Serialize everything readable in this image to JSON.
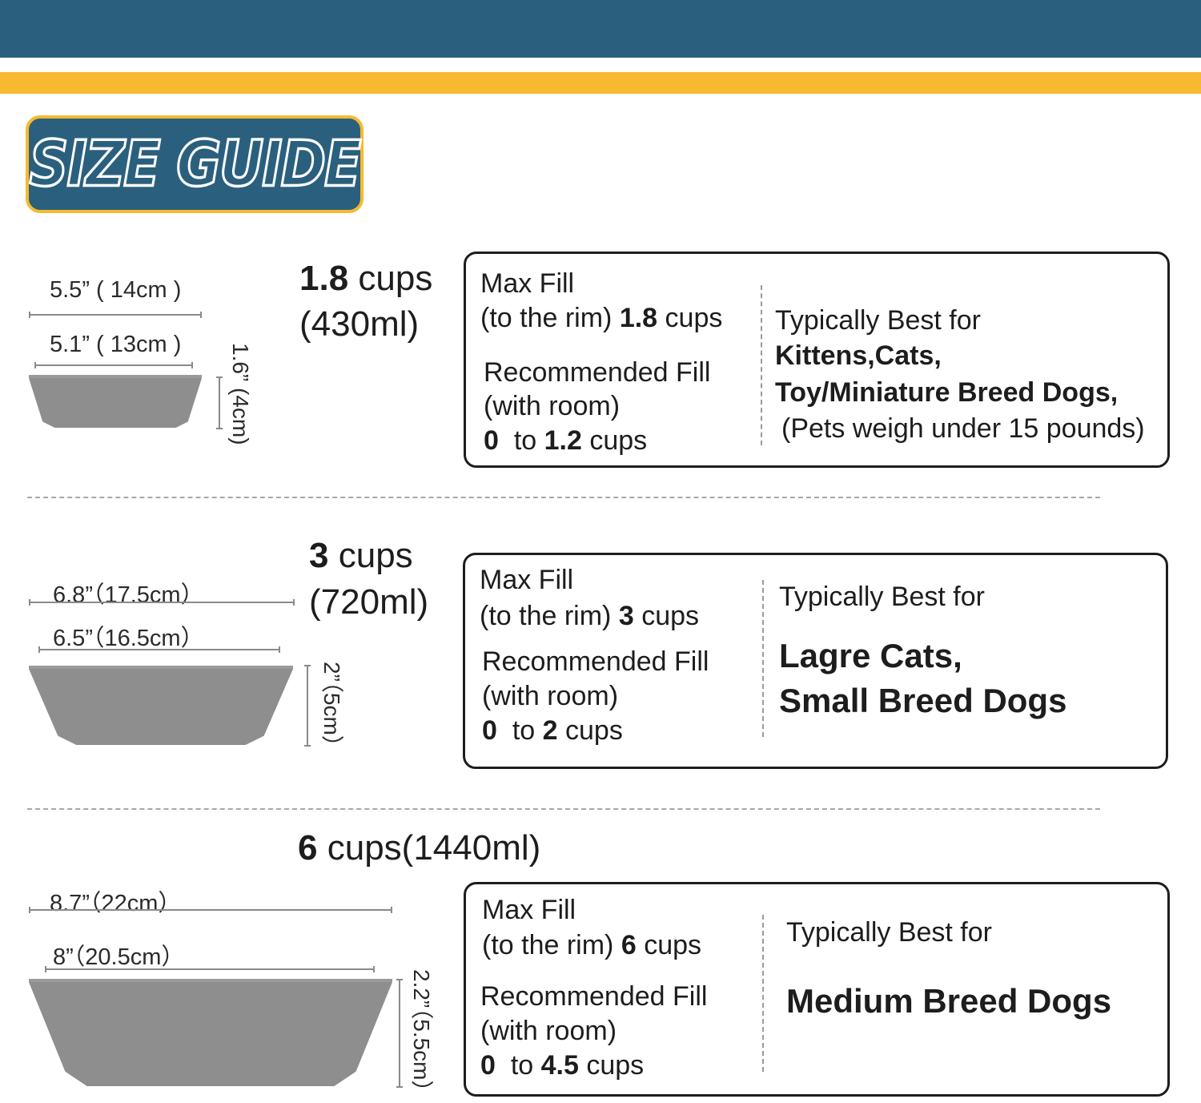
{
  "header": {
    "badge_text": "SIZE GUIDE",
    "colors": {
      "primary": "#2a607e",
      "accent": "#f7b92f"
    }
  },
  "sizes": [
    {
      "outer_dim": "5.5” ( 14cm )",
      "inner_dim": "5.1” ( 13cm )",
      "height_dim": "1.6” (4cm)",
      "capacity_cups": "1.8",
      "capacity_unit": "cups",
      "capacity_ml": "(430ml)",
      "max_fill_label": "Max Fill",
      "max_fill_prefix": "(to the rim)",
      "max_fill_value": "1.8",
      "cups_word": "cups",
      "rec_fill_label": "Recommended Fill",
      "rec_fill_room": "(with room)",
      "rec_from": "0",
      "rec_to_word": "to",
      "rec_to": "1.2",
      "best_for_label": "Typically Best for",
      "best_for_lines": [
        "Kittens,Cats,",
        "Toy/Miniature Breed Dogs,"
      ],
      "best_for_note": "(Pets weigh under 15 pounds)"
    },
    {
      "outer_dim": "6.8”（17.5cm）",
      "inner_dim": "6.5”（16.5cm）",
      "height_dim": "2”（5cm）",
      "capacity_cups": "3",
      "capacity_unit": "cups",
      "capacity_ml": "(720ml)",
      "max_fill_label": "Max Fill",
      "max_fill_prefix": "(to the rim)",
      "max_fill_value": "3",
      "cups_word": "cups",
      "rec_fill_label": "Recommended Fill",
      "rec_fill_room": "(with room)",
      "rec_from": "0",
      "rec_to_word": "to",
      "rec_to": "2",
      "best_for_label": "Typically Best for",
      "best_for_lines": [
        "Lagre Cats,",
        "Small Breed Dogs"
      ]
    },
    {
      "outer_dim": "8.7”（22cm）",
      "inner_dim": "8”（20.5cm）",
      "height_dim": "2.2”（5.5cm）",
      "capacity_cups": "6",
      "capacity_unit": "cups(1440ml)",
      "max_fill_label": "Max Fill",
      "max_fill_prefix": "(to the rim)",
      "max_fill_value": "6",
      "cups_word": "cups",
      "rec_fill_label": "Recommended Fill",
      "rec_fill_room": "(with room)",
      "rec_from": "0",
      "rec_to_word": "to",
      "rec_to": "4.5",
      "best_for_label": "Typically Best for",
      "best_for_lines": [
        "Medium Breed Dogs"
      ]
    }
  ]
}
